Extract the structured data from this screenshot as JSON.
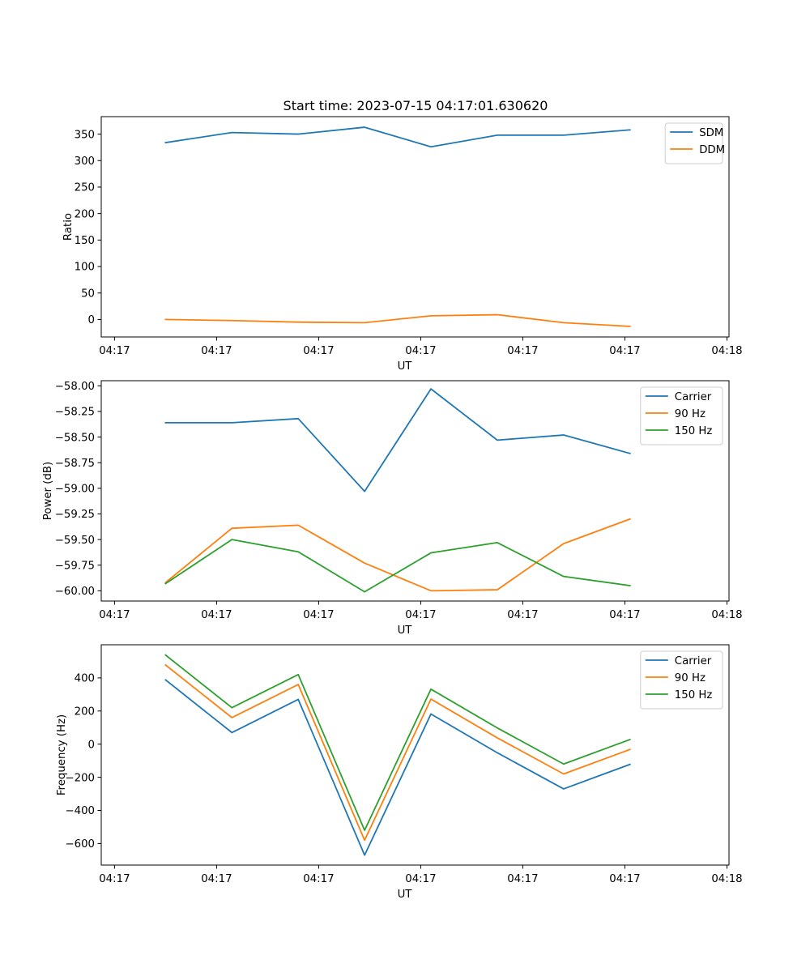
{
  "figure_title": "Start time: 2023-07-15 04:17:01.630620",
  "colors": {
    "blue": "#1f77b4",
    "orange": "#ff7f0e",
    "green": "#2ca02c"
  },
  "chart_data": [
    {
      "type": "line",
      "title": "Start time: 2023-07-15 04:17:01.630620",
      "xlabel": "UT",
      "ylabel": "Ratio",
      "x_tick_labels": [
        "04:17",
        "04:17",
        "04:17",
        "04:17",
        "04:17",
        "04:17",
        "04:18"
      ],
      "x_tick_positions": [
        0,
        1,
        2,
        3,
        4,
        5,
        6
      ],
      "xlim": [
        -0.13,
        6.02
      ],
      "x": [
        0.5,
        1.15,
        1.8,
        2.45,
        3.1,
        3.75,
        4.4,
        5.05
      ],
      "ylim": [
        -33,
        383
      ],
      "yticks": [
        0,
        50,
        100,
        150,
        200,
        250,
        300,
        350
      ],
      "ytick_labels": [
        "0",
        "50",
        "100",
        "150",
        "200",
        "250",
        "300",
        "350"
      ],
      "legend_position": "upper right",
      "series": [
        {
          "name": "SDM",
          "color": "#1f77b4",
          "values": [
            334,
            353,
            350,
            363,
            326,
            348,
            348,
            358
          ]
        },
        {
          "name": "DDM",
          "color": "#ff7f0e",
          "values": [
            0,
            -2,
            -5,
            -6,
            7,
            9,
            -6,
            -13
          ]
        }
      ]
    },
    {
      "type": "line",
      "title": "",
      "xlabel": "UT",
      "ylabel": "Power (dB)",
      "x_tick_labels": [
        "04:17",
        "04:17",
        "04:17",
        "04:17",
        "04:17",
        "04:17",
        "04:18"
      ],
      "x_tick_positions": [
        0,
        1,
        2,
        3,
        4,
        5,
        6
      ],
      "xlim": [
        -0.13,
        6.02
      ],
      "x": [
        0.5,
        1.15,
        1.8,
        2.45,
        3.1,
        3.75,
        4.4,
        5.05
      ],
      "ylim": [
        -60.1,
        -57.95
      ],
      "yticks": [
        -60.0,
        -59.75,
        -59.5,
        -59.25,
        -59.0,
        -58.75,
        -58.5,
        -58.25,
        -58.0
      ],
      "ytick_labels": [
        "−60.00",
        "−59.75",
        "−59.50",
        "−59.25",
        "−59.00",
        "−58.75",
        "−58.50",
        "−58.25",
        "−58.00"
      ],
      "legend_position": "upper right",
      "series": [
        {
          "name": "Carrier",
          "color": "#1f77b4",
          "values": [
            -58.36,
            -58.36,
            -58.32,
            -59.03,
            -58.03,
            -58.53,
            -58.48,
            -58.66
          ]
        },
        {
          "name": "90 Hz",
          "color": "#ff7f0e",
          "values": [
            -59.92,
            -59.39,
            -59.36,
            -59.73,
            -60.0,
            -59.99,
            -59.54,
            -59.3
          ]
        },
        {
          "name": "150 Hz",
          "color": "#2ca02c",
          "values": [
            -59.93,
            -59.5,
            -59.62,
            -60.01,
            -59.63,
            -59.53,
            -59.86,
            -59.95
          ]
        }
      ]
    },
    {
      "type": "line",
      "title": "",
      "xlabel": "UT",
      "ylabel": "Frequency (Hz)",
      "x_tick_labels": [
        "04:17",
        "04:17",
        "04:17",
        "04:17",
        "04:17",
        "04:17",
        "04:18"
      ],
      "x_tick_positions": [
        0,
        1,
        2,
        3,
        4,
        5,
        6
      ],
      "xlim": [
        -0.13,
        6.02
      ],
      "x": [
        0.5,
        1.15,
        1.8,
        2.45,
        3.1,
        3.75,
        4.4,
        5.05
      ],
      "ylim": [
        -730,
        600
      ],
      "yticks": [
        -600,
        -400,
        -200,
        0,
        200,
        400
      ],
      "ytick_labels": [
        "−600",
        "−400",
        "−200",
        "0",
        "200",
        "400"
      ],
      "legend_position": "upper right",
      "series": [
        {
          "name": "Carrier",
          "color": "#1f77b4",
          "values": [
            388,
            70,
            270,
            -670,
            182,
            -52,
            -270,
            -122
          ]
        },
        {
          "name": "90 Hz",
          "color": "#ff7f0e",
          "values": [
            478,
            160,
            360,
            -580,
            272,
            38,
            -180,
            -32
          ]
        },
        {
          "name": "150 Hz",
          "color": "#2ca02c",
          "values": [
            538,
            220,
            420,
            -520,
            332,
            98,
            -120,
            28
          ]
        }
      ]
    }
  ]
}
